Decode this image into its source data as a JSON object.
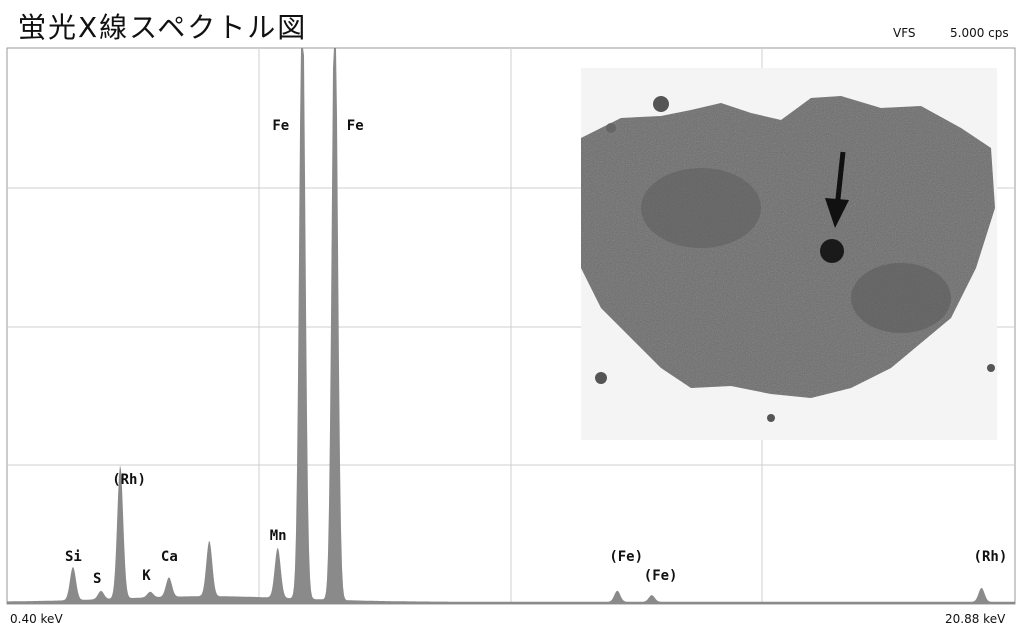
{
  "header": {
    "title": "蛍光X線スペクトル図",
    "vfs_label": "VFS",
    "vfs_value": "5.000 cps"
  },
  "chart_data": {
    "type": "area",
    "xlim": [
      0.4,
      20.88
    ],
    "x_unit": "keV",
    "x_min_label": "0.40 keV",
    "x_max_label": "20.88 keV",
    "grid": true,
    "series": [
      {
        "peaks": [
          {
            "label": "Si",
            "energy": 1.74,
            "height": 0.06
          },
          {
            "label": "S",
            "energy": 2.31,
            "height": 0.015
          },
          {
            "label": "(Rh)",
            "energy": 2.7,
            "height": 0.24
          },
          {
            "label": "K",
            "energy": 3.31,
            "height": 0.01
          },
          {
            "label": "Ca",
            "energy": 3.69,
            "height": 0.035
          },
          {
            "label": "",
            "energy": 4.51,
            "height": 0.1
          },
          {
            "label": "Mn",
            "energy": 5.9,
            "height": 0.09
          },
          {
            "label": "Fe",
            "energy": 6.4,
            "height": 1.15
          },
          {
            "label": "Fe",
            "energy": 7.06,
            "height": 1.15
          },
          {
            "label": "(Fe)",
            "energy": 12.8,
            "height": 0.02
          },
          {
            "label": "(Fe)",
            "energy": 13.5,
            "height": 0.012
          },
          {
            "label": "(Rh)",
            "energy": 20.2,
            "height": 0.025
          }
        ]
      }
    ],
    "labels": [
      {
        "text": "Fe",
        "energy": 6.4,
        "pos": "high"
      },
      {
        "text": "Fe",
        "energy": 7.06,
        "pos": "high"
      },
      {
        "text": "(Rh)",
        "energy": 2.7,
        "pos": "low1"
      },
      {
        "text": "Si",
        "energy": 1.74,
        "pos": "low2"
      },
      {
        "text": "S",
        "energy": 2.31,
        "pos": "low3"
      },
      {
        "text": "K",
        "energy": 3.31,
        "pos": "low4"
      },
      {
        "text": "Ca",
        "energy": 3.69,
        "pos": "low2"
      },
      {
        "text": "Mn",
        "energy": 5.9,
        "pos": "low5"
      },
      {
        "text": "(Fe)",
        "energy": 12.8,
        "pos": "low2"
      },
      {
        "text": "(Fe)",
        "energy": 13.5,
        "pos": "low4"
      },
      {
        "text": "(Rh)",
        "energy": 20.2,
        "pos": "low2"
      }
    ]
  }
}
